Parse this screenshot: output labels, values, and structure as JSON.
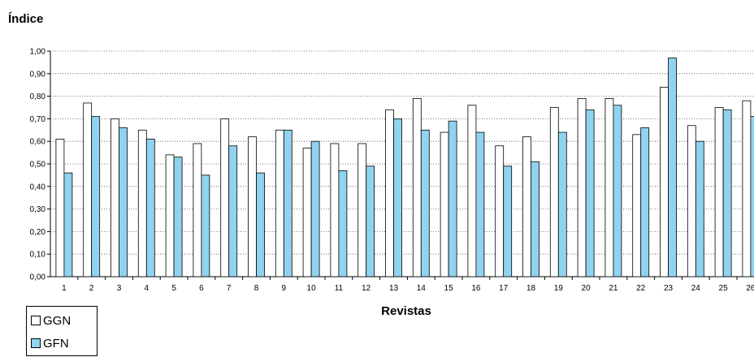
{
  "chart_data": {
    "type": "bar",
    "title": "Índice",
    "xlabel": "Revistas",
    "ylabel": "",
    "ylim": [
      0,
      1
    ],
    "yticks": [
      "0,00",
      "0,10",
      "0,20",
      "0,30",
      "0,40",
      "0,50",
      "0,60",
      "0,70",
      "0,80",
      "0,90",
      "1,00"
    ],
    "grid": true,
    "legend_position": "bottom-left",
    "categories": [
      "1",
      "2",
      "3",
      "4",
      "5",
      "6",
      "7",
      "8",
      "9",
      "10",
      "11",
      "12",
      "13",
      "14",
      "15",
      "16",
      "17",
      "18",
      "19",
      "20",
      "21",
      "22",
      "23",
      "24",
      "25",
      "26"
    ],
    "series": [
      {
        "name": "GGN",
        "color": "#ffffff",
        "values": [
          0.61,
          0.77,
          0.7,
          0.65,
          0.54,
          0.59,
          0.7,
          0.62,
          0.65,
          0.57,
          0.59,
          0.59,
          0.74,
          0.79,
          0.64,
          0.76,
          0.58,
          0.62,
          0.75,
          0.79,
          0.79,
          0.63,
          0.84,
          0.67,
          0.75,
          0.78
        ]
      },
      {
        "name": "GFN",
        "color": "#8fd3f0",
        "values": [
          0.46,
          0.71,
          0.66,
          0.61,
          0.53,
          0.45,
          0.58,
          0.46,
          0.65,
          0.6,
          0.47,
          0.49,
          0.7,
          0.65,
          0.69,
          0.64,
          0.49,
          0.51,
          0.64,
          0.74,
          0.76,
          0.66,
          0.97,
          0.6,
          0.74,
          0.71
        ]
      }
    ]
  }
}
